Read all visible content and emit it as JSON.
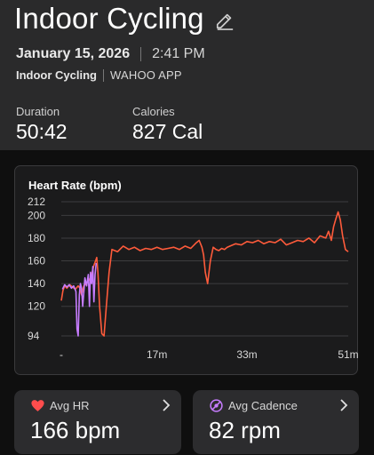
{
  "header": {
    "title": "Indoor Cycling",
    "date": "January 15, 2026",
    "time": "2:41 PM",
    "source_type": "Indoor Cycling",
    "source_app": "WAHOO APP",
    "icons": {
      "edit": "pencil-icon"
    }
  },
  "stats": [
    {
      "label": "Duration",
      "value": "50:42"
    },
    {
      "label": "Calories",
      "value": "827 Cal"
    }
  ],
  "chart_data": {
    "type": "line",
    "title": "Heart Rate (bpm)",
    "y_ticks": [
      94,
      120,
      140,
      160,
      180,
      200,
      212
    ],
    "ylim": [
      94,
      212
    ],
    "x_tick_labels": [
      "-",
      "17m",
      "33m",
      "51m"
    ],
    "x_tick_minutes": [
      0,
      17,
      33,
      51
    ],
    "xlim": [
      0,
      51
    ],
    "grid": true,
    "colors": {
      "heart_rate": "#ff5b3b",
      "cadence_overlay": "#c77dff"
    },
    "series": [
      {
        "color": "#ff5b3b",
        "x": [
          0,
          0.3,
          0.6,
          1,
          1.5,
          2,
          2.5,
          3,
          3.3,
          3.6,
          4,
          4.4,
          4.8,
          5.2,
          5.5,
          5.8,
          6.1,
          6.3,
          6.5,
          6.8,
          7.2,
          7.6,
          8,
          8.5,
          9,
          10,
          11,
          12,
          13,
          14,
          15,
          16,
          17,
          18,
          19,
          20,
          21,
          22,
          23,
          24,
          24.5,
          25,
          25.3,
          25.6,
          26,
          26.5,
          27,
          27.5,
          28,
          28.5,
          29,
          29.5,
          30,
          31,
          32,
          33,
          34,
          35,
          36,
          37,
          38,
          39,
          40,
          41,
          42,
          43,
          44,
          45,
          46,
          47,
          47.5,
          48,
          48.4,
          48.8,
          49.2,
          49.6,
          50,
          50.5,
          51
        ],
        "y": [
          125,
          134,
          138,
          136,
          139,
          137,
          135,
          138,
          136,
          130,
          138,
          140,
          142,
          145,
          150,
          156,
          160,
          163,
          150,
          120,
          96,
          94,
          120,
          150,
          170,
          168,
          173,
          170,
          172,
          169,
          171,
          170,
          172,
          170,
          171,
          172,
          170,
          173,
          171,
          176,
          178,
          172,
          165,
          150,
          140,
          160,
          172,
          170,
          169,
          171,
          170,
          172,
          173,
          175,
          174,
          177,
          176,
          178,
          175,
          177,
          176,
          179,
          174,
          176,
          178,
          177,
          180,
          176,
          182,
          180,
          186,
          178,
          190,
          197,
          203,
          196,
          182,
          170,
          168
        ]
      },
      {
        "color": "#c77dff",
        "x": [
          0.2,
          0.6,
          1,
          1.4,
          1.8,
          2.2,
          2.6,
          2.8,
          3,
          3.2,
          3.4,
          3.6,
          3.8,
          4.2,
          4.5,
          4.8,
          5,
          5.2,
          5.4,
          5.6,
          5.8,
          6,
          6.2
        ],
        "y": [
          135,
          139,
          137,
          139,
          136,
          138,
          133,
          100,
          94,
          130,
          140,
          136,
          120,
          145,
          138,
          148,
          120,
          150,
          140,
          155,
          124,
          148,
          158
        ]
      }
    ]
  },
  "cards": [
    {
      "label": "Avg HR",
      "value": "166 bpm",
      "icon": "heart-icon",
      "color": "#ff4d4d"
    },
    {
      "label": "Avg Cadence",
      "value": "82 rpm",
      "icon": "cadence-icon",
      "color": "#c77dff"
    }
  ]
}
